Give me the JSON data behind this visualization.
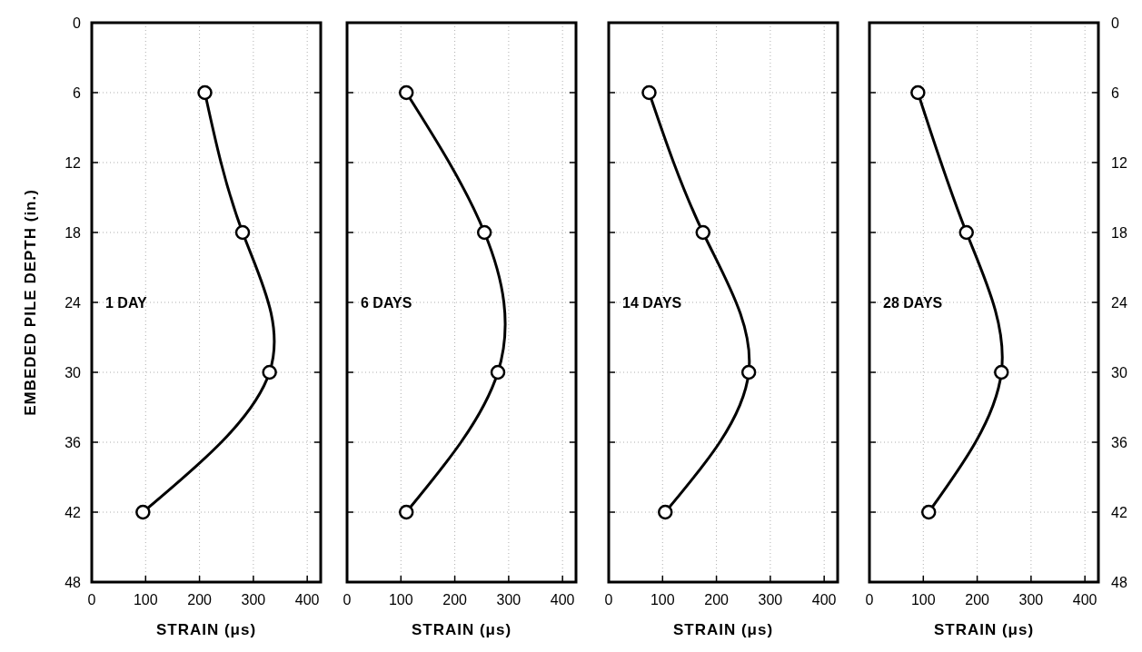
{
  "chart_data": [
    {
      "type": "line",
      "xlabel": "STRAIN (μs)",
      "ylabel": "EMBEDED PILE DEPTH (in.)",
      "annotations": [
        "1 DAY"
      ],
      "series": [
        {
          "color": "#000000",
          "x": [
            210,
            280,
            330,
            95
          ],
          "values": [
            6,
            18,
            30,
            42
          ]
        }
      ],
      "xlim": [
        0,
        425
      ],
      "xticks": [
        0,
        100,
        200,
        300,
        400
      ],
      "ylim": [
        48,
        0
      ],
      "yticks": [
        0,
        6,
        12,
        18,
        24,
        30,
        36,
        42,
        48
      ],
      "grid": true,
      "marker": "circle",
      "line_style": "solid"
    },
    {
      "type": "line",
      "xlabel": "STRAIN (μs)",
      "annotations": [
        "6 DAYS"
      ],
      "series": [
        {
          "color": "#000000",
          "x": [
            110,
            255,
            280,
            110
          ],
          "values": [
            6,
            18,
            30,
            42
          ]
        }
      ],
      "xlim": [
        0,
        425
      ],
      "xticks": [
        0,
        100,
        200,
        300,
        400
      ],
      "ylim": [
        48,
        0
      ],
      "yticks": [
        0,
        6,
        12,
        18,
        24,
        30,
        36,
        42,
        48
      ],
      "grid": true,
      "marker": "circle",
      "line_style": "solid",
      "tick_labels": "x"
    },
    {
      "type": "line",
      "xlabel": "STRAIN (μs)",
      "annotations": [
        "14 DAYS"
      ],
      "series": [
        {
          "color": "#000000",
          "x": [
            75,
            175,
            260,
            105
          ],
          "values": [
            6,
            18,
            30,
            42
          ]
        }
      ],
      "xlim": [
        0,
        425
      ],
      "xticks": [
        0,
        100,
        200,
        300,
        400
      ],
      "ylim": [
        48,
        0
      ],
      "yticks": [
        0,
        6,
        12,
        18,
        24,
        30,
        36,
        42,
        48
      ],
      "grid": true,
      "marker": "circle",
      "line_style": "solid",
      "tick_labels": "x"
    },
    {
      "type": "line",
      "xlabel": "STRAIN (μs)",
      "annotations": [
        "28 DAYS"
      ],
      "series": [
        {
          "color": "#000000",
          "x": [
            90,
            180,
            245,
            110
          ],
          "values": [
            6,
            18,
            30,
            42
          ]
        }
      ],
      "xlim": [
        0,
        425
      ],
      "xticks": [
        0,
        100,
        200,
        300,
        400
      ],
      "ylim": [
        48,
        0
      ],
      "yticks": [
        0,
        6,
        12,
        18,
        24,
        30,
        36,
        42,
        48
      ],
      "grid": true,
      "marker": "circle",
      "line_style": "solid"
    }
  ]
}
